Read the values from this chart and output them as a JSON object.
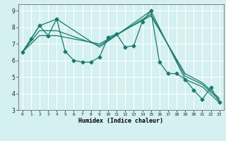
{
  "title": "",
  "xlabel": "Humidex (Indice chaleur)",
  "bg_color": "#d4f0f0",
  "grid_color": "#ffffff",
  "line_color": "#1a7a6e",
  "xlim": [
    -0.5,
    23.5
  ],
  "ylim": [
    3.0,
    9.4
  ],
  "xticks": [
    0,
    1,
    2,
    3,
    4,
    5,
    6,
    7,
    8,
    9,
    10,
    11,
    12,
    13,
    14,
    15,
    16,
    17,
    18,
    19,
    20,
    21,
    22,
    23
  ],
  "yticks": [
    3,
    4,
    5,
    6,
    7,
    8,
    9
  ],
  "line1_x": [
    0,
    1,
    2,
    3,
    4,
    5,
    6,
    7,
    8,
    9,
    10,
    11,
    12,
    13,
    14,
    15,
    16,
    17,
    18,
    19,
    20,
    21,
    22,
    23
  ],
  "line1_y": [
    6.5,
    7.3,
    8.1,
    7.5,
    8.5,
    6.55,
    6.0,
    5.9,
    5.9,
    6.2,
    7.4,
    7.6,
    6.8,
    6.9,
    8.35,
    9.0,
    5.9,
    5.2,
    5.2,
    4.85,
    4.2,
    3.65,
    4.35,
    3.45
  ],
  "line2_x": [
    0,
    2,
    4,
    9,
    15,
    19,
    21,
    23
  ],
  "line2_y": [
    6.5,
    8.1,
    8.5,
    6.8,
    9.0,
    4.85,
    4.4,
    3.45
  ],
  "line3_x": [
    0,
    2,
    4,
    9,
    15,
    19,
    21,
    23
  ],
  "line3_y": [
    6.5,
    7.8,
    7.8,
    6.9,
    8.8,
    5.05,
    4.55,
    3.6
  ],
  "line4_x": [
    0,
    2,
    4,
    9,
    15,
    19,
    21,
    23
  ],
  "line4_y": [
    6.5,
    7.5,
    7.5,
    7.0,
    8.7,
    5.2,
    4.65,
    3.7
  ]
}
